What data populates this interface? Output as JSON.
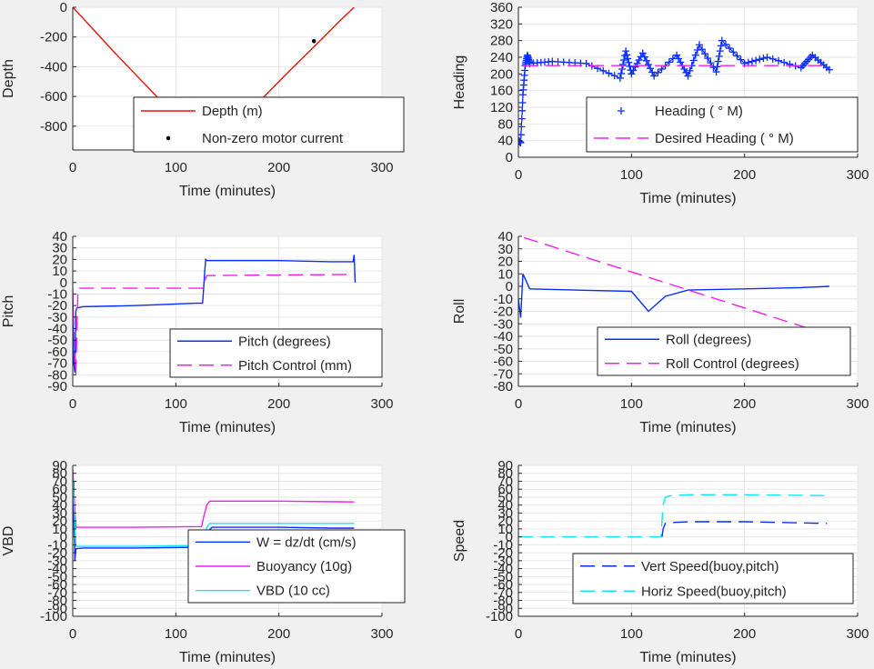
{
  "colors": {
    "figure_bg": "#f0f0f0",
    "axes_bg": "#ffffff",
    "grid": "#e6e6e6",
    "axis": "#262626",
    "red": "#e8140a",
    "blue": "#0a2dff",
    "magenta": "#f020f0",
    "cyan": "#12e6f0",
    "black": "#000000"
  },
  "chart_data": [
    {
      "id": "depth",
      "type": "line",
      "xlabel": "Time (minutes)",
      "ylabel": "Depth",
      "xlim": [
        0,
        300
      ],
      "ylim": [
        -960,
        0
      ],
      "xticks": [
        0,
        100,
        200,
        300
      ],
      "yticks": [
        0,
        -200,
        -400,
        -600,
        -800
      ],
      "grid": true,
      "legend": {
        "placement": "inside-lower-center"
      },
      "series": [
        {
          "name": "Depth (m)",
          "style": "solid",
          "color": "red",
          "x": [
            0,
            20,
            40,
            60,
            80,
            100,
            120,
            130,
            150,
            180,
            210,
            240,
            260,
            273
          ],
          "y": [
            0,
            -150,
            -300,
            -445,
            -590,
            -735,
            -880,
            -955,
            -850,
            -640,
            -430,
            -225,
            -85,
            0
          ]
        },
        {
          "name": "Non-zero motor current",
          "style": "points",
          "color": "black",
          "x": [
            125,
            126,
            127,
            128,
            129,
            130,
            131,
            132,
            133,
            134,
            136,
            234
          ],
          "y": [
            -950,
            -952,
            -954,
            -955,
            -956,
            -955,
            -954,
            -952,
            -950,
            -948,
            -935,
            -228
          ]
        }
      ]
    },
    {
      "id": "heading",
      "type": "scatter",
      "xlabel": "Time (minutes)",
      "ylabel": "Heading",
      "xlim": [
        0,
        300
      ],
      "ylim": [
        0,
        360
      ],
      "xticks": [
        0,
        100,
        200,
        300
      ],
      "yticks": [
        0,
        40,
        80,
        120,
        160,
        200,
        240,
        280,
        320,
        360
      ],
      "ytick_labels": [
        "0",
        "40",
        "80",
        "120",
        "160",
        "200",
        "240",
        "280",
        "320",
        "360"
      ],
      "grid": true,
      "legend": {
        "placement": "inside-lower-right"
      },
      "series": [
        {
          "name": "Heading (  ° M)",
          "style": "plus",
          "color": "blue",
          "x": [
            0,
            2,
            4,
            6,
            8,
            10,
            30,
            60,
            90,
            95,
            100,
            110,
            120,
            140,
            150,
            160,
            175,
            180,
            200,
            220,
            250,
            260,
            275
          ],
          "y": [
            40,
            35,
            150,
            220,
            245,
            225,
            230,
            225,
            190,
            255,
            200,
            250,
            195,
            245,
            195,
            270,
            205,
            280,
            225,
            240,
            215,
            245,
            210
          ]
        },
        {
          "name": "Desired Heading (    ° M)",
          "style": "dashed",
          "color": "magenta",
          "x": [
            5,
            275
          ],
          "y": [
            220,
            220
          ]
        }
      ]
    },
    {
      "id": "pitch",
      "type": "line",
      "xlabel": "Time (minutes)",
      "ylabel": "Pitch",
      "xlim": [
        0,
        300
      ],
      "ylim": [
        -90,
        40
      ],
      "xticks": [
        0,
        100,
        200,
        300
      ],
      "yticks": [
        40,
        30,
        20,
        10,
        0,
        -10,
        -20,
        -30,
        -40,
        -50,
        -60,
        -70,
        -80,
        -90
      ],
      "grid": true,
      "legend": {
        "placement": "inside-lower-right"
      },
      "series": [
        {
          "name": "Pitch (degrees)",
          "style": "solid",
          "color": "blue",
          "x": [
            0,
            1,
            2,
            3,
            4,
            10,
            60,
            120,
            126,
            127,
            128,
            129,
            130,
            150,
            200,
            250,
            272,
            273,
            274
          ],
          "y": [
            -10,
            -70,
            -78,
            -25,
            -22,
            -21,
            -20,
            -18,
            -18,
            -5,
            10,
            20,
            19,
            19,
            19,
            18,
            18,
            24,
            0
          ]
        },
        {
          "name": "Pitch Control (mm)",
          "style": "dashed",
          "color": "magenta",
          "x": [
            0,
            1,
            3,
            5,
            126,
            128,
            130,
            272,
            273
          ],
          "y": [
            -5,
            -40,
            -80,
            -5,
            -5,
            2,
            6,
            7,
            7
          ]
        }
      ]
    },
    {
      "id": "roll",
      "type": "line",
      "xlabel": "Time (minutes)",
      "ylabel": "Roll",
      "xlim": [
        0,
        300
      ],
      "ylim": [
        -80,
        40
      ],
      "xticks": [
        0,
        100,
        200,
        300
      ],
      "yticks": [
        40,
        30,
        20,
        10,
        0,
        -10,
        -20,
        -30,
        -40,
        -50,
        -60,
        -70,
        -80
      ],
      "grid": true,
      "legend": {
        "placement": "inside-lower-right"
      },
      "series": [
        {
          "name": "Roll (degrees)",
          "style": "solid",
          "color": "blue",
          "x": [
            0,
            2,
            4,
            10,
            50,
            100,
            115,
            130,
            150,
            200,
            250,
            275
          ],
          "y": [
            -10,
            -25,
            10,
            -2,
            -3,
            -4,
            -20,
            -8,
            -3,
            -2,
            -1,
            0
          ]
        },
        {
          "name": "Roll Control (degrees)",
          "style": "dashed",
          "color": "magenta",
          "x": [
            5,
            275
          ],
          "y": [
            39,
            -39
          ]
        }
      ]
    },
    {
      "id": "vbd",
      "type": "line",
      "xlabel": "Time (minutes)",
      "ylabel": "VBD",
      "xlim": [
        0,
        300
      ],
      "ylim": [
        -100,
        90
      ],
      "xticks": [
        0,
        100,
        200,
        300
      ],
      "yticks": [
        90,
        80,
        70,
        60,
        50,
        40,
        30,
        20,
        10,
        0,
        -10,
        -20,
        -30,
        -40,
        -50,
        -60,
        -70,
        -80,
        -90,
        -100
      ],
      "grid": true,
      "legend": {
        "placement": "inside-lower-right"
      },
      "series": [
        {
          "name": "W = dz/dt (cm/s)",
          "style": "solid",
          "color": "blue",
          "x": [
            0,
            1,
            2,
            3,
            10,
            60,
            125,
            127,
            130,
            135,
            150,
            200,
            250,
            273
          ],
          "y": [
            0,
            70,
            -30,
            -15,
            -14,
            -14,
            -13,
            -10,
            5,
            12,
            12,
            12,
            11,
            11
          ]
        },
        {
          "name": "Buoyancy (10g)",
          "style": "solid",
          "color": "magenta",
          "x": [
            0,
            1,
            3,
            10,
            60,
            125,
            127,
            130,
            133,
            150,
            200,
            273
          ],
          "y": [
            85,
            60,
            12,
            12,
            12,
            13,
            25,
            40,
            45,
            45,
            45,
            44
          ]
        },
        {
          "name": "VBD (10 cc)",
          "style": "solid",
          "color": "cyan",
          "x": [
            0,
            1,
            3,
            10,
            60,
            125,
            127,
            130,
            133,
            150,
            200,
            273
          ],
          "y": [
            75,
            50,
            -12,
            -12,
            -12,
            -11,
            -5,
            12,
            17,
            17,
            17,
            17
          ]
        }
      ]
    },
    {
      "id": "speed",
      "type": "line",
      "xlabel": "Time (minutes)",
      "ylabel": "Speed",
      "xlim": [
        0,
        300
      ],
      "ylim": [
        -100,
        90
      ],
      "xticks": [
        0,
        100,
        200,
        300
      ],
      "yticks": [
        90,
        80,
        70,
        60,
        50,
        40,
        30,
        20,
        10,
        0,
        -10,
        -20,
        -30,
        -40,
        -50,
        -60,
        -70,
        -80,
        -90,
        -100
      ],
      "grid": true,
      "legend": {
        "placement": "inside-lower-right"
      },
      "series": [
        {
          "name": "Vert Speed(buoy,pitch)",
          "style": "dashed",
          "color": "blue",
          "x": [
            127,
            128,
            130,
            135,
            150,
            200,
            273
          ],
          "y": [
            0,
            10,
            17,
            18,
            19,
            19,
            17
          ]
        },
        {
          "name": "Horiz Speed(buoy,pitch)",
          "style": "dashed",
          "color": "cyan",
          "x": [
            0,
            50,
            126,
            128,
            130,
            135,
            150,
            200,
            273
          ],
          "y": [
            0,
            0,
            0,
            40,
            50,
            52,
            53,
            53,
            52
          ]
        }
      ]
    }
  ]
}
